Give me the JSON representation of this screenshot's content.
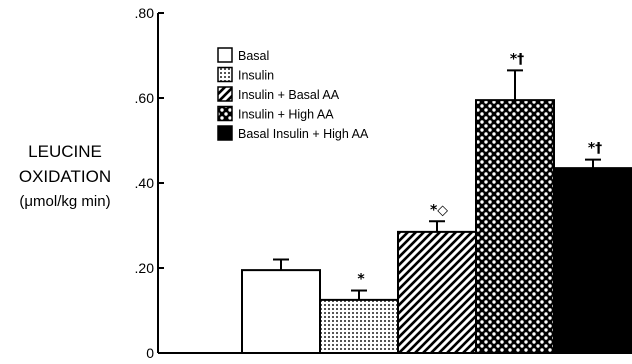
{
  "chart_data": {
    "type": "bar",
    "ylabel_lines": [
      "LEUCINE",
      "OXIDATION",
      "(μmol/kg min)"
    ],
    "ylim": [
      0,
      0.8
    ],
    "yticks": [
      {
        "value": 0,
        "label": "0"
      },
      {
        "value": 0.2,
        "label": ".20"
      },
      {
        "value": 0.4,
        "label": ".40"
      },
      {
        "value": 0.6,
        "label": ".60"
      },
      {
        "value": 0.8,
        "label": ".80"
      }
    ],
    "series": [
      {
        "name": "Basal",
        "value": 0.195,
        "error": 0.025,
        "pattern": "white",
        "annotation": ""
      },
      {
        "name": "Insulin",
        "value": 0.125,
        "error": 0.022,
        "pattern": "fine-dots",
        "annotation": "*"
      },
      {
        "name": "Insulin + Basal AA",
        "value": 0.285,
        "error": 0.025,
        "pattern": "diagonal",
        "annotation": "*◇"
      },
      {
        "name": "Insulin + High AA",
        "value": 0.595,
        "error": 0.07,
        "pattern": "checker",
        "annotation": "*†"
      },
      {
        "name": "Basal Insulin + High AA",
        "value": 0.435,
        "error": 0.02,
        "pattern": "black",
        "annotation": "*†"
      }
    ],
    "legend_position": "top-left",
    "grid": false
  }
}
